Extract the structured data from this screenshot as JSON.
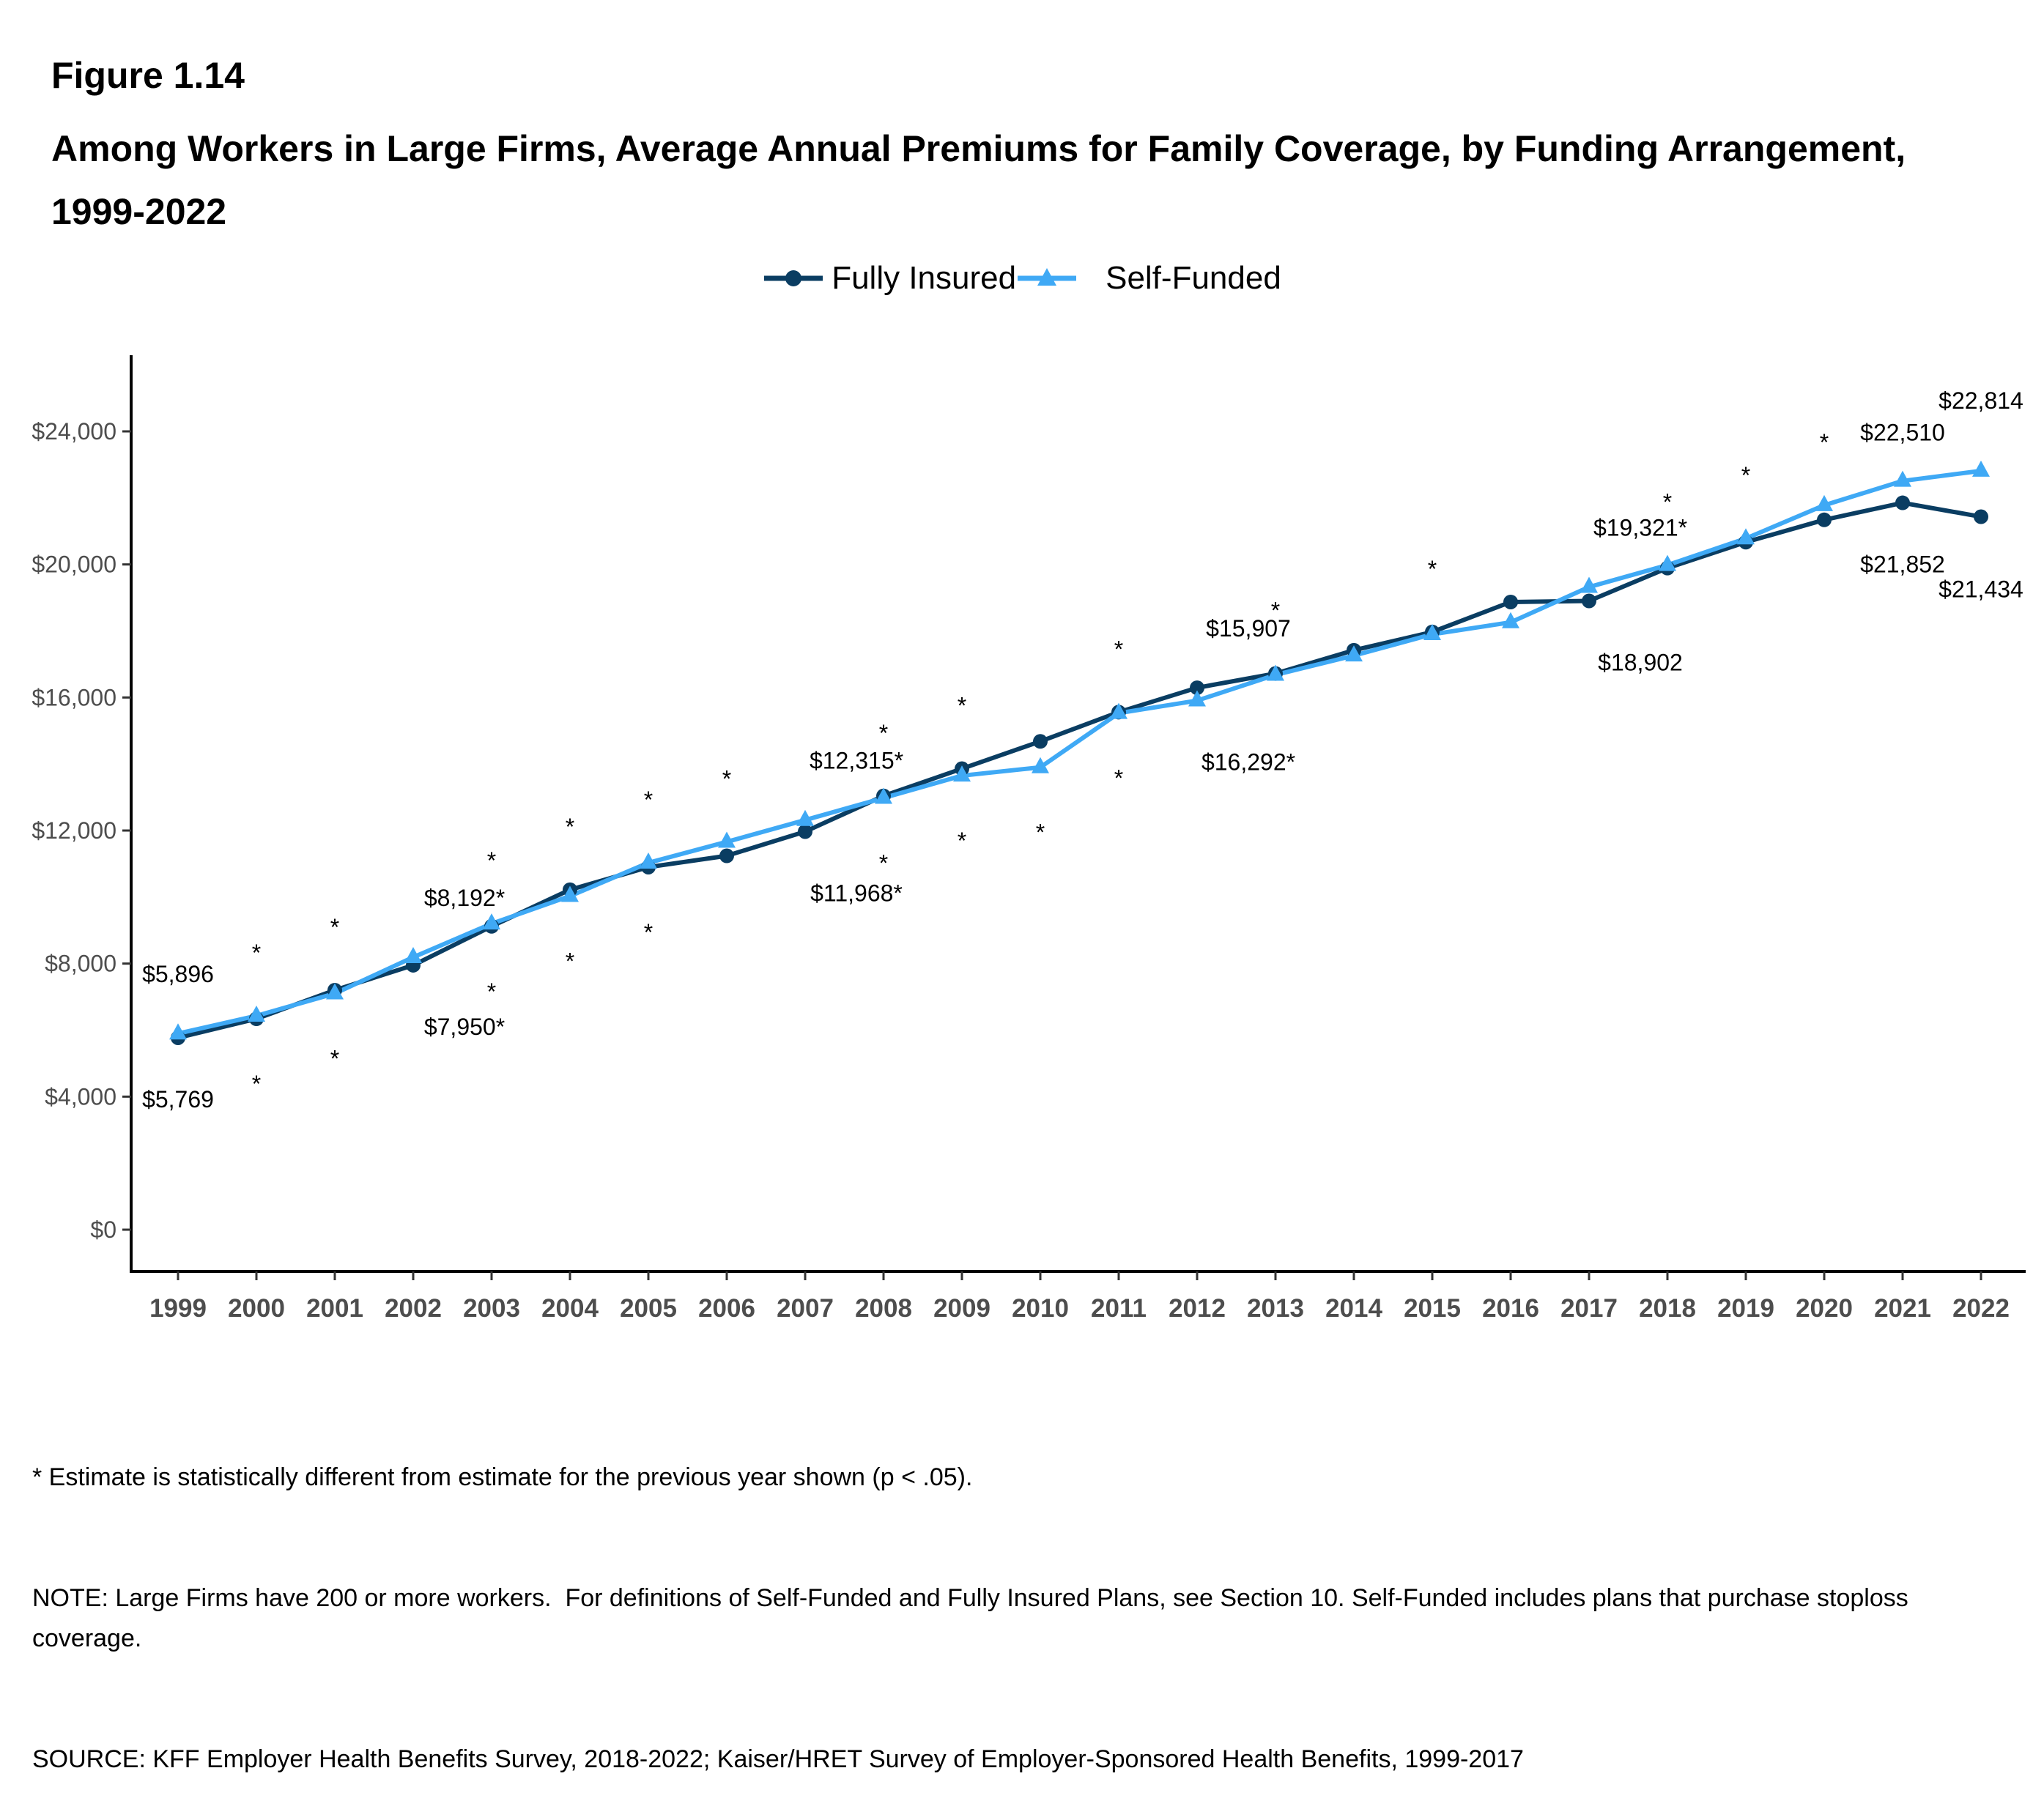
{
  "figure_label": "Figure 1.14",
  "title": "Among Workers in Large Firms, Average Annual Premiums for Family Coverage, by Funding Arrangement, 1999-2022",
  "legend": [
    {
      "name": "Fully Insured",
      "color": "#0a3d62",
      "marker": "circle"
    },
    {
      "name": "Self-Funded",
      "color": "#3fa9f5",
      "marker": "triangle"
    }
  ],
  "footnotes": [
    "* Estimate is statistically different from estimate for the previous year shown (p < .05).",
    "NOTE: Large Firms have 200 or more workers.  For definitions of Self-Funded and Fully Insured Plans, see Section 10. Self-Funded includes plans that purchase stoploss coverage.",
    "SOURCE: KFF Employer Health Benefits Survey, 2018-2022; Kaiser/HRET Survey of Employer-Sponsored Health Benefits, 1999-2017"
  ],
  "chart_data": {
    "type": "line",
    "title": "Among Workers in Large Firms, Average Annual Premiums for Family Coverage, by Funding Arrangement, 1999-2022",
    "xlabel": "",
    "ylabel": "",
    "x": [
      "1999",
      "2000",
      "2001",
      "2002",
      "2003",
      "2004",
      "2005",
      "2006",
      "2007",
      "2008",
      "2009",
      "2010",
      "2011",
      "2012",
      "2013",
      "2014",
      "2015",
      "2016",
      "2017",
      "2018",
      "2019",
      "2020",
      "2021",
      "2022"
    ],
    "ylim": [
      0,
      26000
    ],
    "y_ticks": [
      0,
      4000,
      8000,
      12000,
      16000,
      20000,
      24000
    ],
    "y_tick_labels": [
      "$0",
      "$4,000",
      "$8,000",
      "$12,000",
      "$16,000",
      "$20,000",
      "$24,000"
    ],
    "grid": false,
    "legend_position": "top",
    "series": [
      {
        "name": "Fully Insured",
        "color": "#0a3d62",
        "marker": "circle",
        "values": [
          5769,
          6340,
          7200,
          7950,
          9120,
          10220,
          10900,
          11240,
          11968,
          13040,
          13860,
          14680,
          15560,
          16292,
          16720,
          17420,
          17970,
          18870,
          18902,
          19890,
          20670,
          21340,
          21852,
          21434
        ],
        "significant": [
          false,
          true,
          true,
          true,
          true,
          true,
          true,
          false,
          true,
          true,
          true,
          true,
          true,
          true,
          false,
          false,
          false,
          false,
          false,
          false,
          false,
          false,
          false,
          false
        ]
      },
      {
        "name": "Self-Funded",
        "color": "#3fa9f5",
        "marker": "triangle",
        "values": [
          5896,
          6430,
          7100,
          8192,
          9200,
          10030,
          11030,
          11660,
          12315,
          12980,
          13650,
          13900,
          15530,
          15907,
          16680,
          17260,
          17900,
          18260,
          19321,
          19980,
          20780,
          21780,
          22510,
          22814
        ],
        "significant": [
          false,
          true,
          true,
          true,
          true,
          true,
          true,
          true,
          true,
          true,
          true,
          false,
          true,
          false,
          true,
          false,
          true,
          false,
          true,
          true,
          true,
          true,
          false,
          false
        ]
      }
    ],
    "data_labels": [
      {
        "series": "Self-Funded",
        "x": "1999",
        "text": "$5,896",
        "position": "above"
      },
      {
        "series": "Fully Insured",
        "x": "1999",
        "text": "$5,769",
        "position": "below"
      },
      {
        "series": "Self-Funded",
        "x": "2002",
        "text": "$8,192*",
        "position": "above"
      },
      {
        "series": "Fully Insured",
        "x": "2002",
        "text": "$7,950*",
        "position": "below"
      },
      {
        "series": "Self-Funded",
        "x": "2007",
        "text": "$12,315*",
        "position": "above"
      },
      {
        "series": "Fully Insured",
        "x": "2007",
        "text": "$11,968*",
        "position": "below"
      },
      {
        "series": "Self-Funded",
        "x": "2012",
        "text": "$15,907",
        "position": "above"
      },
      {
        "series": "Fully Insured",
        "x": "2012",
        "text": "$16,292*",
        "position": "below"
      },
      {
        "series": "Self-Funded",
        "x": "2017",
        "text": "$19,321*",
        "position": "above"
      },
      {
        "series": "Fully Insured",
        "x": "2017",
        "text": "$18,902",
        "position": "below"
      },
      {
        "series": "Self-Funded",
        "x": "2021",
        "text": "$22,510",
        "position": "above"
      },
      {
        "series": "Fully Insured",
        "x": "2021",
        "text": "$21,852",
        "position": "below"
      },
      {
        "series": "Self-Funded",
        "x": "2022",
        "text": "$22,814",
        "position": "above"
      },
      {
        "series": "Fully Insured",
        "x": "2022",
        "text": "$21,434",
        "position": "below"
      }
    ],
    "significance_marker": "*"
  }
}
